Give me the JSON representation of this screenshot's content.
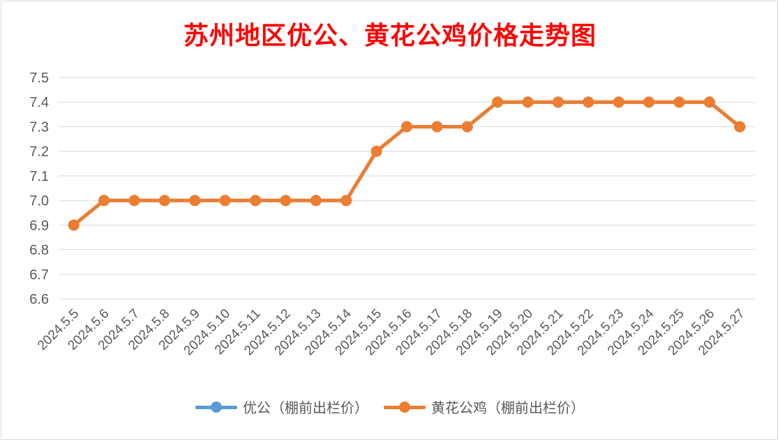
{
  "chart_data": {
    "type": "line",
    "title": "苏州地区优公、黄花公鸡价格走势图",
    "xlabel": "",
    "ylabel": "",
    "categories": [
      "2024.5.5",
      "2024.5.6",
      "2024.5.7",
      "2024.5.8",
      "2024.5.9",
      "2024.5.10",
      "2024.5.11",
      "2024.5.12",
      "2024.5.13",
      "2024.5.14",
      "2024.5.15",
      "2024.5.16",
      "2024.5.17",
      "2024.5.18",
      "2024.5.19",
      "2024.5.20",
      "2024.5.21",
      "2024.5.22",
      "2024.5.23",
      "2024.5.24",
      "2024.5.25",
      "2024.5.26",
      "2024.5.27"
    ],
    "ylim": [
      6.6,
      7.5
    ],
    "yticks": [
      "7.5",
      "7.4",
      "7.3",
      "7.2",
      "7.1",
      "7.0",
      "6.9",
      "6.8",
      "6.7",
      "6.6"
    ],
    "grid": true,
    "legend_position": "bottom",
    "series": [
      {
        "name": "优公（棚前出栏价）",
        "color": "#5b9bd5",
        "values": [
          6.9,
          7.0,
          7.0,
          7.0,
          7.0,
          7.0,
          7.0,
          7.0,
          7.0,
          7.0,
          7.2,
          7.3,
          7.3,
          7.3,
          7.4,
          7.4,
          7.4,
          7.4,
          7.4,
          7.4,
          7.4,
          7.4,
          7.3
        ]
      },
      {
        "name": "黄花公鸡（棚前出栏价）",
        "color": "#ed7d31",
        "values": [
          6.9,
          7.0,
          7.0,
          7.0,
          7.0,
          7.0,
          7.0,
          7.0,
          7.0,
          7.0,
          7.2,
          7.3,
          7.3,
          7.3,
          7.4,
          7.4,
          7.4,
          7.4,
          7.4,
          7.4,
          7.4,
          7.4,
          7.3
        ]
      }
    ]
  }
}
